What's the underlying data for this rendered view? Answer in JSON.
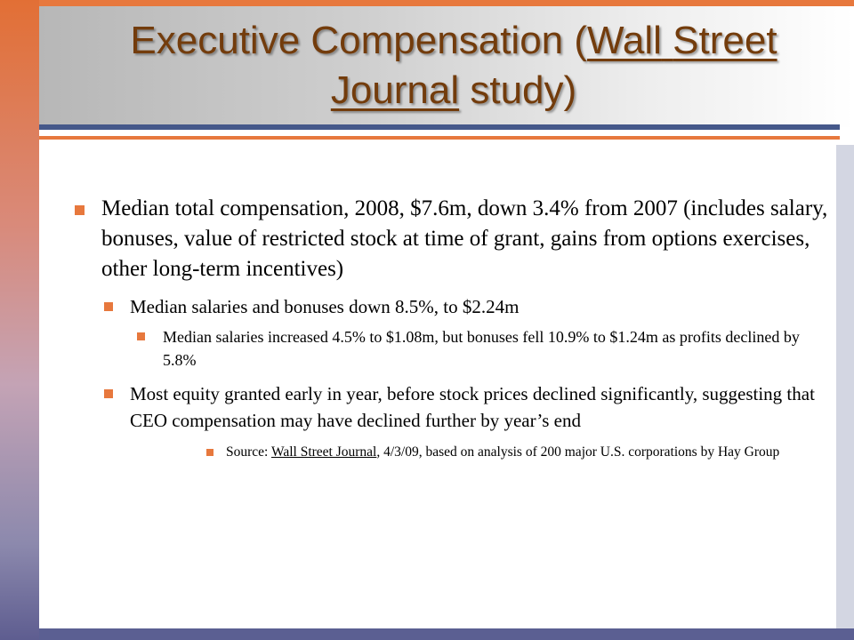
{
  "slide": {
    "title": {
      "part1": "Executive Compensation (",
      "underlined1": "Wall",
      "space": " ",
      "underlined2": "Street Journal",
      "part2": " study)"
    },
    "bullets": {
      "b1": "Median total compensation, 2008, $7.6m, down 3.4% from 2007 (includes salary, bonuses, value of restricted stock at time of grant, gains from options exercises, other long-term incentives)",
      "b2": "Median salaries and bonuses down 8.5%, to $2.24m",
      "b3": "Median salaries increased 4.5% to $1.08m, but bonuses fell 10.9% to $1.24m as profits declined by 5.8%",
      "b4": "Most equity granted early in year, before stock prices declined significantly, suggesting that CEO compensation may have declined further by year’s end",
      "b5_prefix": "Source: ",
      "b5_source": "Wall Street Journal",
      "b5_suffix": ", 4/3/09, based on analysis of 200 major U.S. corporations by Hay Group"
    },
    "colors": {
      "title": "#733c0c",
      "accent_orange": "#e7783d",
      "accent_navy": "#45588a"
    }
  }
}
